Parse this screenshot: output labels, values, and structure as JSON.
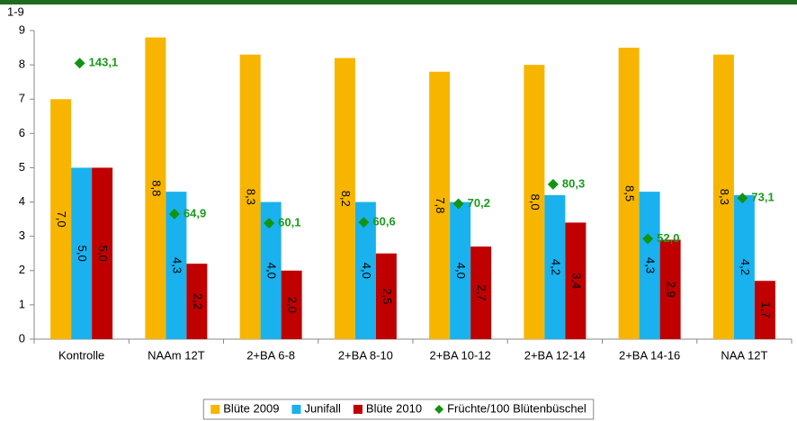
{
  "chart_data": {
    "type": "bar",
    "y_label": "1-9",
    "categories": [
      "Kontrolle",
      "NAAm 12T",
      "2+BA 6-8",
      "2+BA 8-10",
      "2+BA 10-12",
      "2+BA 12-14",
      "2+BA 14-16",
      "NAA 12T"
    ],
    "ylim": [
      0,
      9
    ],
    "yticks": [
      0,
      1,
      2,
      3,
      4,
      5,
      6,
      7,
      8,
      9
    ],
    "y2lim": [
      0,
      160
    ],
    "legend": "bottom",
    "series": [
      {
        "name": "Blüte 2009",
        "color": "#f7b500",
        "values": [
          7.0,
          8.8,
          8.3,
          8.2,
          7.8,
          8.0,
          8.5,
          8.3
        ],
        "value_labels": [
          "7,0",
          "8,8",
          "8,3",
          "8,2",
          "7,8",
          "8,0",
          "8,5",
          "8,3"
        ]
      },
      {
        "name": "Junifall",
        "color": "#19b2ee",
        "values": [
          5.0,
          4.3,
          4.0,
          4.0,
          4.0,
          4.2,
          4.3,
          4.2
        ],
        "value_labels": [
          "5,0",
          "4,3",
          "4,0",
          "4,0",
          "4,0",
          "4,2",
          "4,3",
          "4,2"
        ]
      },
      {
        "name": "Blüte 2010",
        "color": "#c00000",
        "values": [
          5.0,
          2.2,
          2.0,
          2.5,
          2.7,
          3.4,
          2.9,
          1.7
        ],
        "value_labels": [
          "5,0",
          "2,2",
          "2,0",
          "2,5",
          "2,7",
          "3,4",
          "2,9",
          "1,7"
        ]
      },
      {
        "name": "Früchte/100 Blütenbüschel",
        "color": "#129412",
        "type": "scatter",
        "axis": "y2",
        "values": [
          143.1,
          64.9,
          60.1,
          60.6,
          70.2,
          80.3,
          52.0,
          73.1
        ],
        "value_labels": [
          "143,1",
          "64,9",
          "60,1",
          "60,6",
          "70,2",
          "80,3",
          "52,0",
          "73,1"
        ]
      }
    ]
  }
}
